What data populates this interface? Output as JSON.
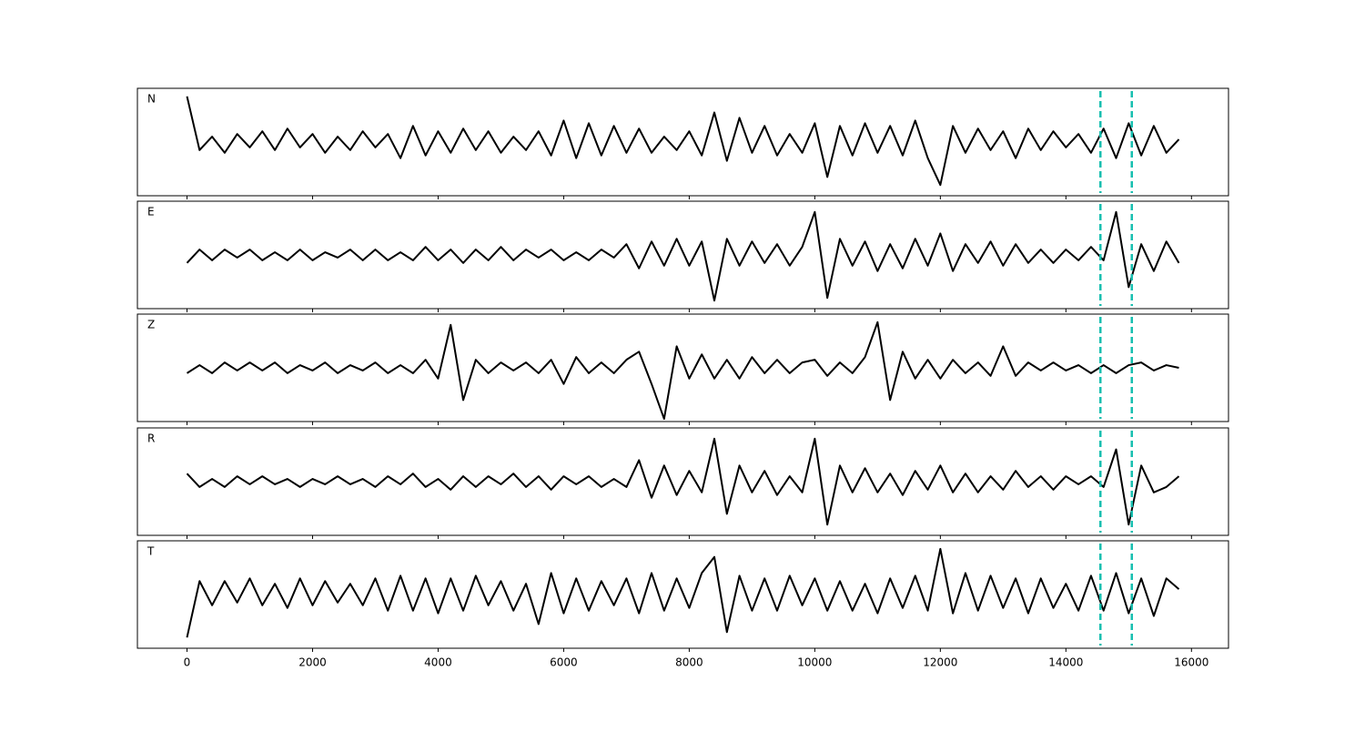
{
  "chart_data": {
    "type": "line",
    "layout": "stacked",
    "x": [
      0,
      200,
      400,
      600,
      800,
      1000,
      1200,
      1400,
      1600,
      1800,
      2000,
      2200,
      2400,
      2600,
      2800,
      3000,
      3200,
      3400,
      3600,
      3800,
      4000,
      4200,
      4400,
      4600,
      4800,
      5000,
      5200,
      5400,
      5600,
      5800,
      6000,
      6200,
      6400,
      6600,
      6800,
      7000,
      7200,
      7400,
      7600,
      7800,
      8000,
      8200,
      8400,
      8600,
      8800,
      9000,
      9200,
      9400,
      9600,
      9800,
      10000,
      10200,
      10400,
      10600,
      10800,
      11000,
      11200,
      11400,
      11600,
      11800,
      12000,
      12200,
      12400,
      12600,
      12800,
      13000,
      13200,
      13400,
      13600,
      13800,
      14000,
      14200,
      14400,
      14600,
      14800,
      15000,
      15200,
      15400,
      15600,
      15800
    ],
    "series": [
      {
        "name": "N",
        "color": "#000000",
        "values": [
          0.85,
          -0.15,
          0.1,
          -0.2,
          0.15,
          -0.1,
          0.2,
          -0.15,
          0.25,
          -0.1,
          0.15,
          -0.2,
          0.1,
          -0.15,
          0.2,
          -0.1,
          0.15,
          -0.3,
          0.3,
          -0.25,
          0.2,
          -0.2,
          0.25,
          -0.15,
          0.2,
          -0.2,
          0.1,
          -0.15,
          0.2,
          -0.25,
          0.4,
          -0.3,
          0.35,
          -0.25,
          0.3,
          -0.2,
          0.25,
          -0.2,
          0.1,
          -0.15,
          0.2,
          -0.25,
          0.55,
          -0.35,
          0.45,
          -0.2,
          0.3,
          -0.25,
          0.15,
          -0.2,
          0.35,
          -0.65,
          0.3,
          -0.25,
          0.35,
          -0.2,
          0.3,
          -0.25,
          0.4,
          -0.3,
          -0.8,
          0.3,
          -0.2,
          0.25,
          -0.15,
          0.2,
          -0.3,
          0.25,
          -0.15,
          0.2,
          -0.1,
          0.15,
          -0.2,
          0.25,
          -0.3,
          0.35,
          -0.25,
          0.3,
          -0.2,
          0.05
        ]
      },
      {
        "name": "E",
        "color": "#000000",
        "values": [
          -0.15,
          0.1,
          -0.1,
          0.1,
          -0.05,
          0.1,
          -0.1,
          0.05,
          -0.1,
          0.1,
          -0.1,
          0.05,
          -0.05,
          0.1,
          -0.1,
          0.1,
          -0.1,
          0.05,
          -0.1,
          0.15,
          -0.1,
          0.1,
          -0.15,
          0.1,
          -0.1,
          0.15,
          -0.1,
          0.1,
          -0.05,
          0.1,
          -0.1,
          0.05,
          -0.1,
          0.1,
          -0.05,
          0.2,
          -0.25,
          0.25,
          -0.2,
          0.3,
          -0.2,
          0.25,
          -0.85,
          0.3,
          -0.2,
          0.25,
          -0.15,
          0.2,
          -0.2,
          0.15,
          0.8,
          -0.8,
          0.3,
          -0.2,
          0.25,
          -0.3,
          0.2,
          -0.25,
          0.3,
          -0.2,
          0.4,
          -0.3,
          0.2,
          -0.15,
          0.25,
          -0.2,
          0.2,
          -0.15,
          0.1,
          -0.15,
          0.1,
          -0.1,
          0.15,
          -0.1,
          0.8,
          -0.6,
          0.2,
          -0.3,
          0.25,
          -0.15
        ]
      },
      {
        "name": "Z",
        "color": "#000000",
        "values": [
          -0.1,
          0.05,
          -0.1,
          0.1,
          -0.05,
          0.1,
          -0.05,
          0.1,
          -0.1,
          0.05,
          -0.05,
          0.1,
          -0.1,
          0.05,
          -0.05,
          0.1,
          -0.1,
          0.05,
          -0.1,
          0.15,
          -0.2,
          0.8,
          -0.6,
          0.15,
          -0.1,
          0.1,
          -0.05,
          0.1,
          -0.1,
          0.15,
          -0.3,
          0.2,
          -0.1,
          0.1,
          -0.1,
          0.15,
          0.3,
          -0.3,
          -0.95,
          0.4,
          -0.2,
          0.25,
          -0.2,
          0.15,
          -0.2,
          0.2,
          -0.1,
          0.15,
          -0.1,
          0.1,
          0.15,
          -0.15,
          0.1,
          -0.1,
          0.2,
          0.85,
          -0.6,
          0.3,
          -0.2,
          0.15,
          -0.2,
          0.15,
          -0.1,
          0.1,
          -0.15,
          0.4,
          -0.15,
          0.1,
          -0.05,
          0.1,
          -0.05,
          0.05,
          -0.1,
          0.05,
          -0.1,
          0.05,
          0.1,
          -0.05,
          0.05,
          0
        ]
      },
      {
        "name": "R",
        "color": "#000000",
        "values": [
          0.15,
          -0.1,
          0.05,
          -0.1,
          0.1,
          -0.05,
          0.1,
          -0.05,
          0.05,
          -0.1,
          0.05,
          -0.05,
          0.1,
          -0.05,
          0.05,
          -0.1,
          0.1,
          -0.05,
          0.15,
          -0.1,
          0.05,
          -0.15,
          0.1,
          -0.1,
          0.1,
          -0.05,
          0.15,
          -0.1,
          0.1,
          -0.15,
          0.1,
          -0.05,
          0.1,
          -0.1,
          0.05,
          -0.1,
          0.4,
          -0.3,
          0.3,
          -0.25,
          0.2,
          -0.2,
          0.8,
          -0.6,
          0.3,
          -0.2,
          0.2,
          -0.25,
          0.1,
          -0.2,
          0.8,
          -0.8,
          0.3,
          -0.2,
          0.25,
          -0.2,
          0.15,
          -0.25,
          0.2,
          -0.15,
          0.3,
          -0.2,
          0.15,
          -0.2,
          0.1,
          -0.15,
          0.2,
          -0.1,
          0.1,
          -0.15,
          0.1,
          -0.05,
          0.1,
          -0.1,
          0.6,
          -0.8,
          0.3,
          -0.2,
          -0.1,
          0.1
        ]
      },
      {
        "name": "T",
        "color": "#000000",
        "values": [
          -0.8,
          0.25,
          -0.2,
          0.25,
          -0.15,
          0.3,
          -0.2,
          0.2,
          -0.25,
          0.3,
          -0.2,
          0.25,
          -0.15,
          0.2,
          -0.2,
          0.3,
          -0.3,
          0.35,
          -0.3,
          0.3,
          -0.35,
          0.3,
          -0.3,
          0.35,
          -0.2,
          0.25,
          -0.3,
          0.2,
          -0.55,
          0.4,
          -0.35,
          0.3,
          -0.3,
          0.25,
          -0.2,
          0.3,
          -0.35,
          0.4,
          -0.3,
          0.3,
          -0.25,
          0.4,
          0.7,
          -0.7,
          0.35,
          -0.3,
          0.3,
          -0.3,
          0.35,
          -0.2,
          0.3,
          -0.3,
          0.25,
          -0.3,
          0.2,
          -0.35,
          0.3,
          -0.25,
          0.35,
          -0.3,
          0.85,
          -0.35,
          0.4,
          -0.3,
          0.35,
          -0.25,
          0.3,
          -0.35,
          0.3,
          -0.25,
          0.2,
          -0.3,
          0.35,
          -0.3,
          0.4,
          -0.35,
          0.3,
          -0.4,
          0.3,
          0.1
        ]
      }
    ],
    "xlim": [
      -790,
      16590
    ],
    "xticks": [
      0,
      2000,
      4000,
      6000,
      8000,
      10000,
      12000,
      14000,
      16000
    ],
    "ylim": [
      -1,
      1
    ],
    "vlines": [
      14550,
      15050
    ],
    "vline_color": "#17bfb0",
    "vline_style": "dashed"
  }
}
